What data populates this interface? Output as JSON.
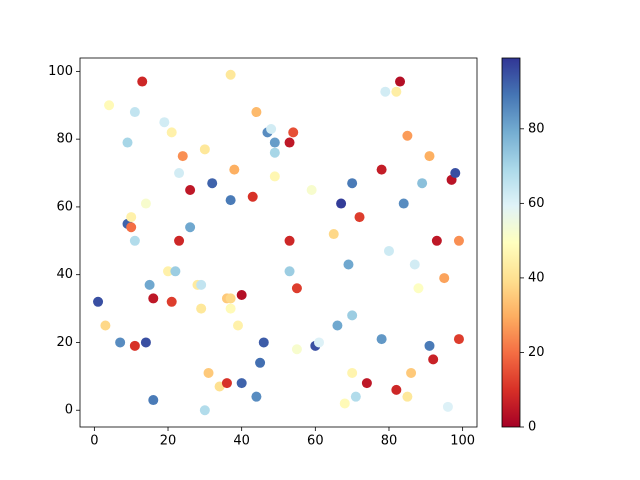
{
  "chart_data": {
    "type": "scatter",
    "x": [
      1,
      3,
      4,
      7,
      9,
      9,
      10,
      10,
      11,
      11,
      11,
      13,
      14,
      14,
      15,
      16,
      16,
      19,
      20,
      21,
      21,
      22,
      23,
      23,
      24,
      26,
      26,
      28,
      29,
      29,
      30,
      30,
      31,
      32,
      34,
      36,
      36,
      37,
      37,
      37,
      37,
      38,
      39,
      40,
      40,
      43,
      44,
      44,
      45,
      46,
      47,
      48,
      49,
      49,
      49,
      53,
      53,
      53,
      54,
      55,
      55,
      59,
      60,
      61,
      65,
      66,
      67,
      68,
      69,
      70,
      70,
      70,
      71,
      72,
      74,
      78,
      78,
      79,
      80,
      82,
      82,
      83,
      84,
      85,
      85,
      86,
      87,
      88,
      89,
      91,
      91,
      92,
      93,
      95,
      96,
      97,
      98,
      99,
      99
    ],
    "values": [
      32,
      25,
      90,
      20,
      79,
      55,
      54,
      57,
      88,
      50,
      19,
      97,
      20,
      61,
      37,
      33,
      3,
      85,
      41,
      82,
      32,
      41,
      70,
      50,
      75,
      65,
      54,
      37,
      30,
      37,
      77,
      0,
      11,
      67,
      7,
      8,
      33,
      33,
      62,
      99,
      30,
      71,
      25,
      8,
      34,
      63,
      88,
      4,
      14,
      20,
      82,
      83,
      79,
      76,
      69,
      79,
      50,
      41,
      82,
      36,
      18,
      65,
      19,
      20,
      52,
      25,
      61,
      2,
      43,
      67,
      11,
      28,
      4,
      57,
      8,
      71,
      21,
      94,
      47,
      94,
      6,
      97,
      61,
      81,
      4,
      11,
      43,
      36,
      67,
      75,
      19,
      15,
      50,
      39,
      1,
      68,
      70,
      50,
      21
    ],
    "c": [
      95,
      38,
      48,
      85,
      70,
      92,
      20,
      45,
      65,
      68,
      10,
      8,
      95,
      52,
      80,
      5,
      88,
      62,
      45,
      45,
      12,
      72,
      62,
      8,
      25,
      5,
      80,
      43,
      42,
      65,
      42,
      68,
      35,
      92,
      40,
      10,
      35,
      38,
      88,
      42,
      48,
      30,
      45,
      92,
      3,
      10,
      32,
      85,
      90,
      93,
      85,
      62,
      82,
      70,
      47,
      5,
      8,
      72,
      15,
      12,
      52,
      52,
      95,
      60,
      38,
      80,
      98,
      48,
      80,
      88,
      46,
      72,
      68,
      12,
      5,
      6,
      83,
      62,
      63,
      44,
      8,
      3,
      85,
      27,
      42,
      35,
      62,
      50,
      75,
      30,
      88,
      7,
      5,
      28,
      60,
      4,
      95,
      25,
      12
    ],
    "colormap": "RdYlBu",
    "clim": [
      0,
      99
    ],
    "cticks": [
      0,
      20,
      40,
      60,
      80
    ],
    "xlim": [
      -3.9,
      103.9
    ],
    "xticks": [
      0,
      20,
      40,
      60,
      80,
      100
    ],
    "ylim": [
      -4.95,
      103.95
    ],
    "yticks": [
      0,
      20,
      40,
      60,
      80,
      100
    ]
  }
}
